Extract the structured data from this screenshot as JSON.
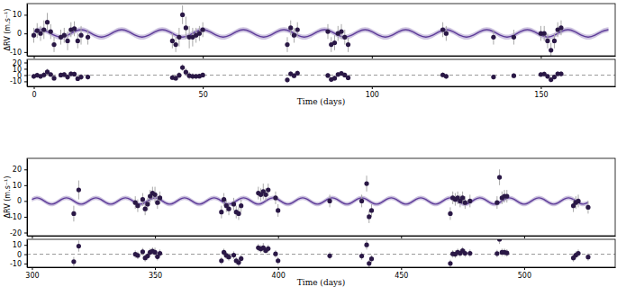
{
  "chart_data": [
    {
      "type": "scatter",
      "y_label": "ΔRV (m.s⁻¹)",
      "xlim": [
        -2,
        172
      ],
      "xticks": [
        0,
        50,
        100,
        150
      ],
      "ylim": [
        -12,
        16
      ],
      "yticks": [
        -10,
        0,
        10
      ],
      "tick_labels": "y",
      "series": [
        {
          "type": "line",
          "color": "#5e3c99",
          "band": 1.3,
          "x": [
            0,
            2,
            4,
            6,
            8,
            10,
            12,
            14,
            16,
            18,
            20,
            22,
            24,
            26,
            28,
            30,
            32,
            34,
            36,
            38,
            40,
            42,
            44,
            46,
            48,
            50,
            52,
            54,
            56,
            58,
            60,
            62,
            64,
            66,
            68,
            70,
            72,
            74,
            76,
            78,
            80,
            82,
            84,
            86,
            88,
            90,
            92,
            94,
            96,
            98,
            100,
            102,
            104,
            106,
            108,
            110,
            112,
            114,
            116,
            118,
            120,
            122,
            124,
            126,
            128,
            130,
            132,
            134,
            136,
            138,
            140,
            142,
            144,
            146,
            148,
            150,
            152,
            154,
            156,
            158,
            160,
            162,
            164,
            166,
            168,
            170
          ],
          "values": [
            1,
            2,
            1,
            -1,
            -2,
            -1,
            1,
            2,
            1,
            -1,
            -2,
            -1,
            1,
            2,
            1,
            -1,
            -2,
            -1,
            1,
            2,
            1,
            -1,
            -2,
            -1,
            1,
            2,
            1,
            -1,
            -2,
            -1,
            1,
            2,
            1,
            -1,
            -2,
            -1,
            1,
            2,
            1,
            -1,
            -2,
            -1,
            1,
            2,
            1,
            -1,
            -2,
            -1,
            1,
            2,
            1,
            -1,
            -2,
            -1,
            1,
            2,
            1,
            -1,
            -2,
            -1,
            1,
            2,
            1,
            -1,
            -2,
            -1,
            1,
            2,
            1,
            -1,
            -2,
            -1,
            1,
            2,
            1,
            -1,
            -2,
            -1,
            1,
            2,
            1,
            -1,
            -2,
            -1,
            1,
            2
          ]
        },
        {
          "type": "scatter",
          "color": "#2a1846",
          "marker": "circle",
          "x": [
            0,
            1,
            2,
            3,
            4,
            5,
            6,
            8,
            9,
            10,
            11,
            12,
            13,
            14,
            16,
            41,
            42,
            43,
            44,
            45,
            46,
            47,
            48,
            49,
            50,
            75,
            76,
            77,
            78,
            87,
            88,
            89,
            90,
            91,
            92,
            93,
            121,
            122,
            136,
            142,
            150,
            151,
            152,
            153,
            154,
            155,
            156
          ],
          "values": [
            -1,
            1.5,
            0,
            2,
            6,
            1,
            -6,
            -2,
            -1,
            -4,
            2,
            2.5,
            -4,
            -1,
            -2,
            -4,
            -6,
            -2,
            10,
            3,
            -2,
            -2,
            -1,
            0,
            2,
            -6,
            3,
            -1,
            2,
            1,
            -6,
            -5,
            0,
            1,
            -2,
            -6,
            2,
            0,
            -2,
            -2,
            0,
            0,
            -4,
            -9,
            -4,
            2,
            3
          ],
          "error": [
            4,
            4,
            4,
            5,
            5,
            4,
            4,
            4,
            4,
            5,
            4,
            4,
            4,
            5,
            4,
            4,
            4,
            5,
            5,
            6,
            6,
            5,
            4,
            4,
            4,
            4,
            4,
            4,
            4,
            4,
            4,
            4,
            4,
            4,
            4,
            4,
            4,
            4,
            4,
            4,
            4,
            4,
            4,
            4,
            4,
            4,
            4
          ]
        }
      ]
    },
    {
      "type": "scatter",
      "x_label": "Time (days)",
      "xlim": [
        -2,
        172
      ],
      "xticks": [
        0,
        50,
        100,
        150
      ],
      "ylim": [
        -18,
        25
      ],
      "yticks": [
        -10,
        0,
        10,
        20
      ],
      "series": [
        {
          "type": "hline",
          "color": "#999999",
          "line_style": "dashed",
          "values": [
            0
          ]
        },
        {
          "type": "scatter",
          "color": "#2a1846",
          "marker": "circle",
          "x": [
            0,
            1,
            2,
            3,
            4,
            5,
            6,
            8,
            9,
            10,
            11,
            12,
            13,
            14,
            16,
            41,
            42,
            43,
            44,
            45,
            46,
            47,
            48,
            49,
            50,
            75,
            76,
            77,
            78,
            87,
            88,
            89,
            90,
            91,
            92,
            93,
            121,
            122,
            136,
            142,
            150,
            151,
            152,
            153,
            154,
            155,
            156
          ],
          "values": [
            -2,
            -0.2,
            -2,
            0.3,
            5,
            1,
            -5,
            0,
            0.7,
            -3,
            2,
            1.5,
            -5.7,
            -3,
            -3,
            -4,
            -5,
            -0.3,
            12,
            4.7,
            -1,
            -2,
            -2,
            -1.7,
            0,
            -7.7,
            2,
            -1,
            3,
            -0.7,
            -7,
            -5,
            1,
            2.7,
            0,
            -4.3,
            0.3,
            -2,
            -3,
            -1,
            1,
            1.7,
            -2,
            -7.3,
            -3,
            2,
            2
          ],
          "error": [
            4,
            4,
            4,
            5,
            5,
            4,
            4,
            4,
            4,
            5,
            4,
            4,
            4,
            5,
            4,
            4,
            4,
            5,
            5,
            6,
            6,
            5,
            4,
            4,
            4,
            4,
            4,
            4,
            4,
            4,
            4,
            4,
            4,
            4,
            4,
            4,
            4,
            4,
            4,
            4,
            4,
            4,
            4,
            4,
            4,
            4,
            4
          ]
        }
      ]
    },
    {
      "type": "scatter",
      "y_label": "ΔRV (m.s⁻¹)",
      "xlim": [
        298,
        537
      ],
      "xticks": [
        300,
        350,
        400,
        450,
        500
      ],
      "ylim": [
        -22,
        27
      ],
      "yticks": [
        -20,
        -10,
        0,
        10,
        20
      ],
      "tick_labels": "y",
      "series": [
        {
          "type": "line",
          "color": "#5e3c99",
          "band": 1.3,
          "x": [
            300,
            302,
            304,
            306,
            308,
            310,
            312,
            314,
            316,
            318,
            320,
            322,
            324,
            326,
            328,
            330,
            332,
            334,
            336,
            338,
            340,
            342,
            344,
            346,
            348,
            350,
            352,
            354,
            356,
            358,
            360,
            362,
            364,
            366,
            368,
            370,
            372,
            374,
            376,
            378,
            380,
            382,
            384,
            386,
            388,
            390,
            392,
            394,
            396,
            398,
            400,
            402,
            404,
            406,
            408,
            410,
            412,
            414,
            416,
            418,
            420,
            422,
            424,
            426,
            428,
            430,
            432,
            434,
            436,
            438,
            440,
            442,
            444,
            446,
            448,
            450,
            452,
            454,
            456,
            458,
            460,
            462,
            464,
            466,
            468,
            470,
            472,
            474,
            476,
            478,
            480,
            482,
            484,
            486,
            488,
            490,
            492,
            494,
            496,
            498,
            500,
            502,
            504,
            506,
            508,
            510,
            512,
            514,
            516,
            518,
            520,
            522,
            524,
            526
          ],
          "values": [
            1,
            2,
            1,
            -1,
            -2,
            -1,
            1,
            2,
            1,
            -1,
            -2,
            -1,
            1,
            2,
            1,
            -1,
            -2,
            -1,
            1,
            2,
            1,
            -1,
            -2,
            -1,
            1,
            2,
            1,
            -1,
            -2,
            -1,
            1,
            2,
            1,
            -1,
            -2,
            -1,
            1,
            2,
            1,
            -1,
            -2,
            -1,
            1,
            2,
            1,
            -1,
            -2,
            -1,
            1,
            2,
            1,
            -1,
            -2,
            -1,
            1,
            2,
            1,
            -1,
            -2,
            -1,
            1,
            2,
            1,
            -1,
            -2,
            -1,
            1,
            2,
            1,
            -1,
            -2,
            -1,
            1,
            2,
            1,
            -1,
            -2,
            -1,
            1,
            2,
            1,
            -1,
            -2,
            -1,
            1,
            2,
            1,
            -1,
            -2,
            -1,
            1,
            2,
            1,
            -1,
            -2,
            -1,
            1,
            2,
            1,
            -1,
            -2,
            -1,
            1,
            2,
            1,
            -1,
            -2,
            -1,
            1,
            2,
            1,
            -1,
            -2,
            -1
          ]
        },
        {
          "type": "scatter",
          "color": "#2a1846",
          "marker": "circle",
          "x": [
            317,
            319,
            342,
            343,
            345,
            346,
            347,
            348,
            349,
            350,
            351,
            352,
            377,
            378,
            379,
            380,
            382,
            383,
            384,
            385,
            392,
            393,
            394,
            395,
            396,
            399,
            400,
            421,
            434,
            436,
            437,
            438,
            470,
            471,
            472,
            473,
            474,
            475,
            476,
            478,
            489,
            490,
            491,
            492,
            493,
            520,
            521,
            522,
            526
          ],
          "values": [
            -8,
            7,
            -1,
            -3,
            1,
            -5,
            -2,
            3,
            5,
            4,
            -1,
            2,
            -7,
            1,
            -3,
            -5,
            -2,
            -7,
            -8,
            -3,
            5,
            4,
            6,
            4,
            7,
            2,
            -6,
            0,
            0,
            11,
            -10,
            -6,
            -8,
            2,
            1,
            2,
            0,
            2,
            -1,
            0,
            -1,
            15,
            2,
            3,
            3,
            -3,
            -1,
            0,
            -4
          ],
          "error": [
            5,
            6,
            4,
            4,
            4,
            4,
            4,
            4,
            4,
            5,
            4,
            4,
            4,
            4,
            4,
            4,
            4,
            4,
            4,
            4,
            4,
            4,
            5,
            4,
            4,
            4,
            4,
            4,
            4,
            5,
            4,
            4,
            4,
            4,
            4,
            4,
            4,
            4,
            4,
            4,
            4,
            5,
            4,
            4,
            4,
            4,
            4,
            4,
            4
          ]
        }
      ]
    },
    {
      "type": "scatter",
      "x_label": "Time (days)",
      "xlim": [
        298,
        537
      ],
      "xticks": [
        300,
        350,
        400,
        450,
        500
      ],
      "ylim": [
        -14,
        16
      ],
      "yticks": [
        -10,
        0,
        10
      ],
      "series": [
        {
          "type": "hline",
          "color": "#999999",
          "line_style": "dashed",
          "values": [
            0
          ]
        },
        {
          "type": "scatter",
          "color": "#2a1846",
          "marker": "circle",
          "x": [
            317,
            319,
            342,
            343,
            345,
            346,
            347,
            348,
            349,
            350,
            351,
            352,
            377,
            378,
            379,
            380,
            382,
            383,
            384,
            385,
            392,
            393,
            394,
            395,
            396,
            399,
            400,
            421,
            434,
            436,
            437,
            438,
            470,
            471,
            472,
            473,
            474,
            475,
            476,
            478,
            489,
            490,
            491,
            492,
            493,
            520,
            521,
            522,
            526
          ],
          "values": [
            -8,
            8.7,
            0,
            -1.3,
            2.7,
            -4,
            -2,
            2,
            3.3,
            2,
            -2.7,
            1,
            -7,
            2,
            -1.3,
            -3,
            -1,
            -7,
            -9,
            -4.7,
            7,
            5.7,
            7,
            4,
            6,
            0.3,
            -7,
            -1.7,
            -2,
            10,
            -10,
            -5,
            -10,
            0.3,
            0,
            2,
            1,
            3.7,
            1,
            1,
            0.7,
            16,
            2,
            2,
            1.3,
            -4,
            -1,
            1,
            -3
          ],
          "error": [
            5,
            6,
            4,
            4,
            4,
            4,
            4,
            4,
            4,
            5,
            4,
            4,
            4,
            4,
            4,
            4,
            4,
            4,
            4,
            4,
            4,
            4,
            5,
            4,
            4,
            4,
            4,
            4,
            4,
            5,
            4,
            4,
            4,
            4,
            4,
            4,
            4,
            4,
            4,
            4,
            4,
            5,
            4,
            4,
            4,
            4,
            4,
            4,
            4
          ]
        }
      ]
    }
  ]
}
